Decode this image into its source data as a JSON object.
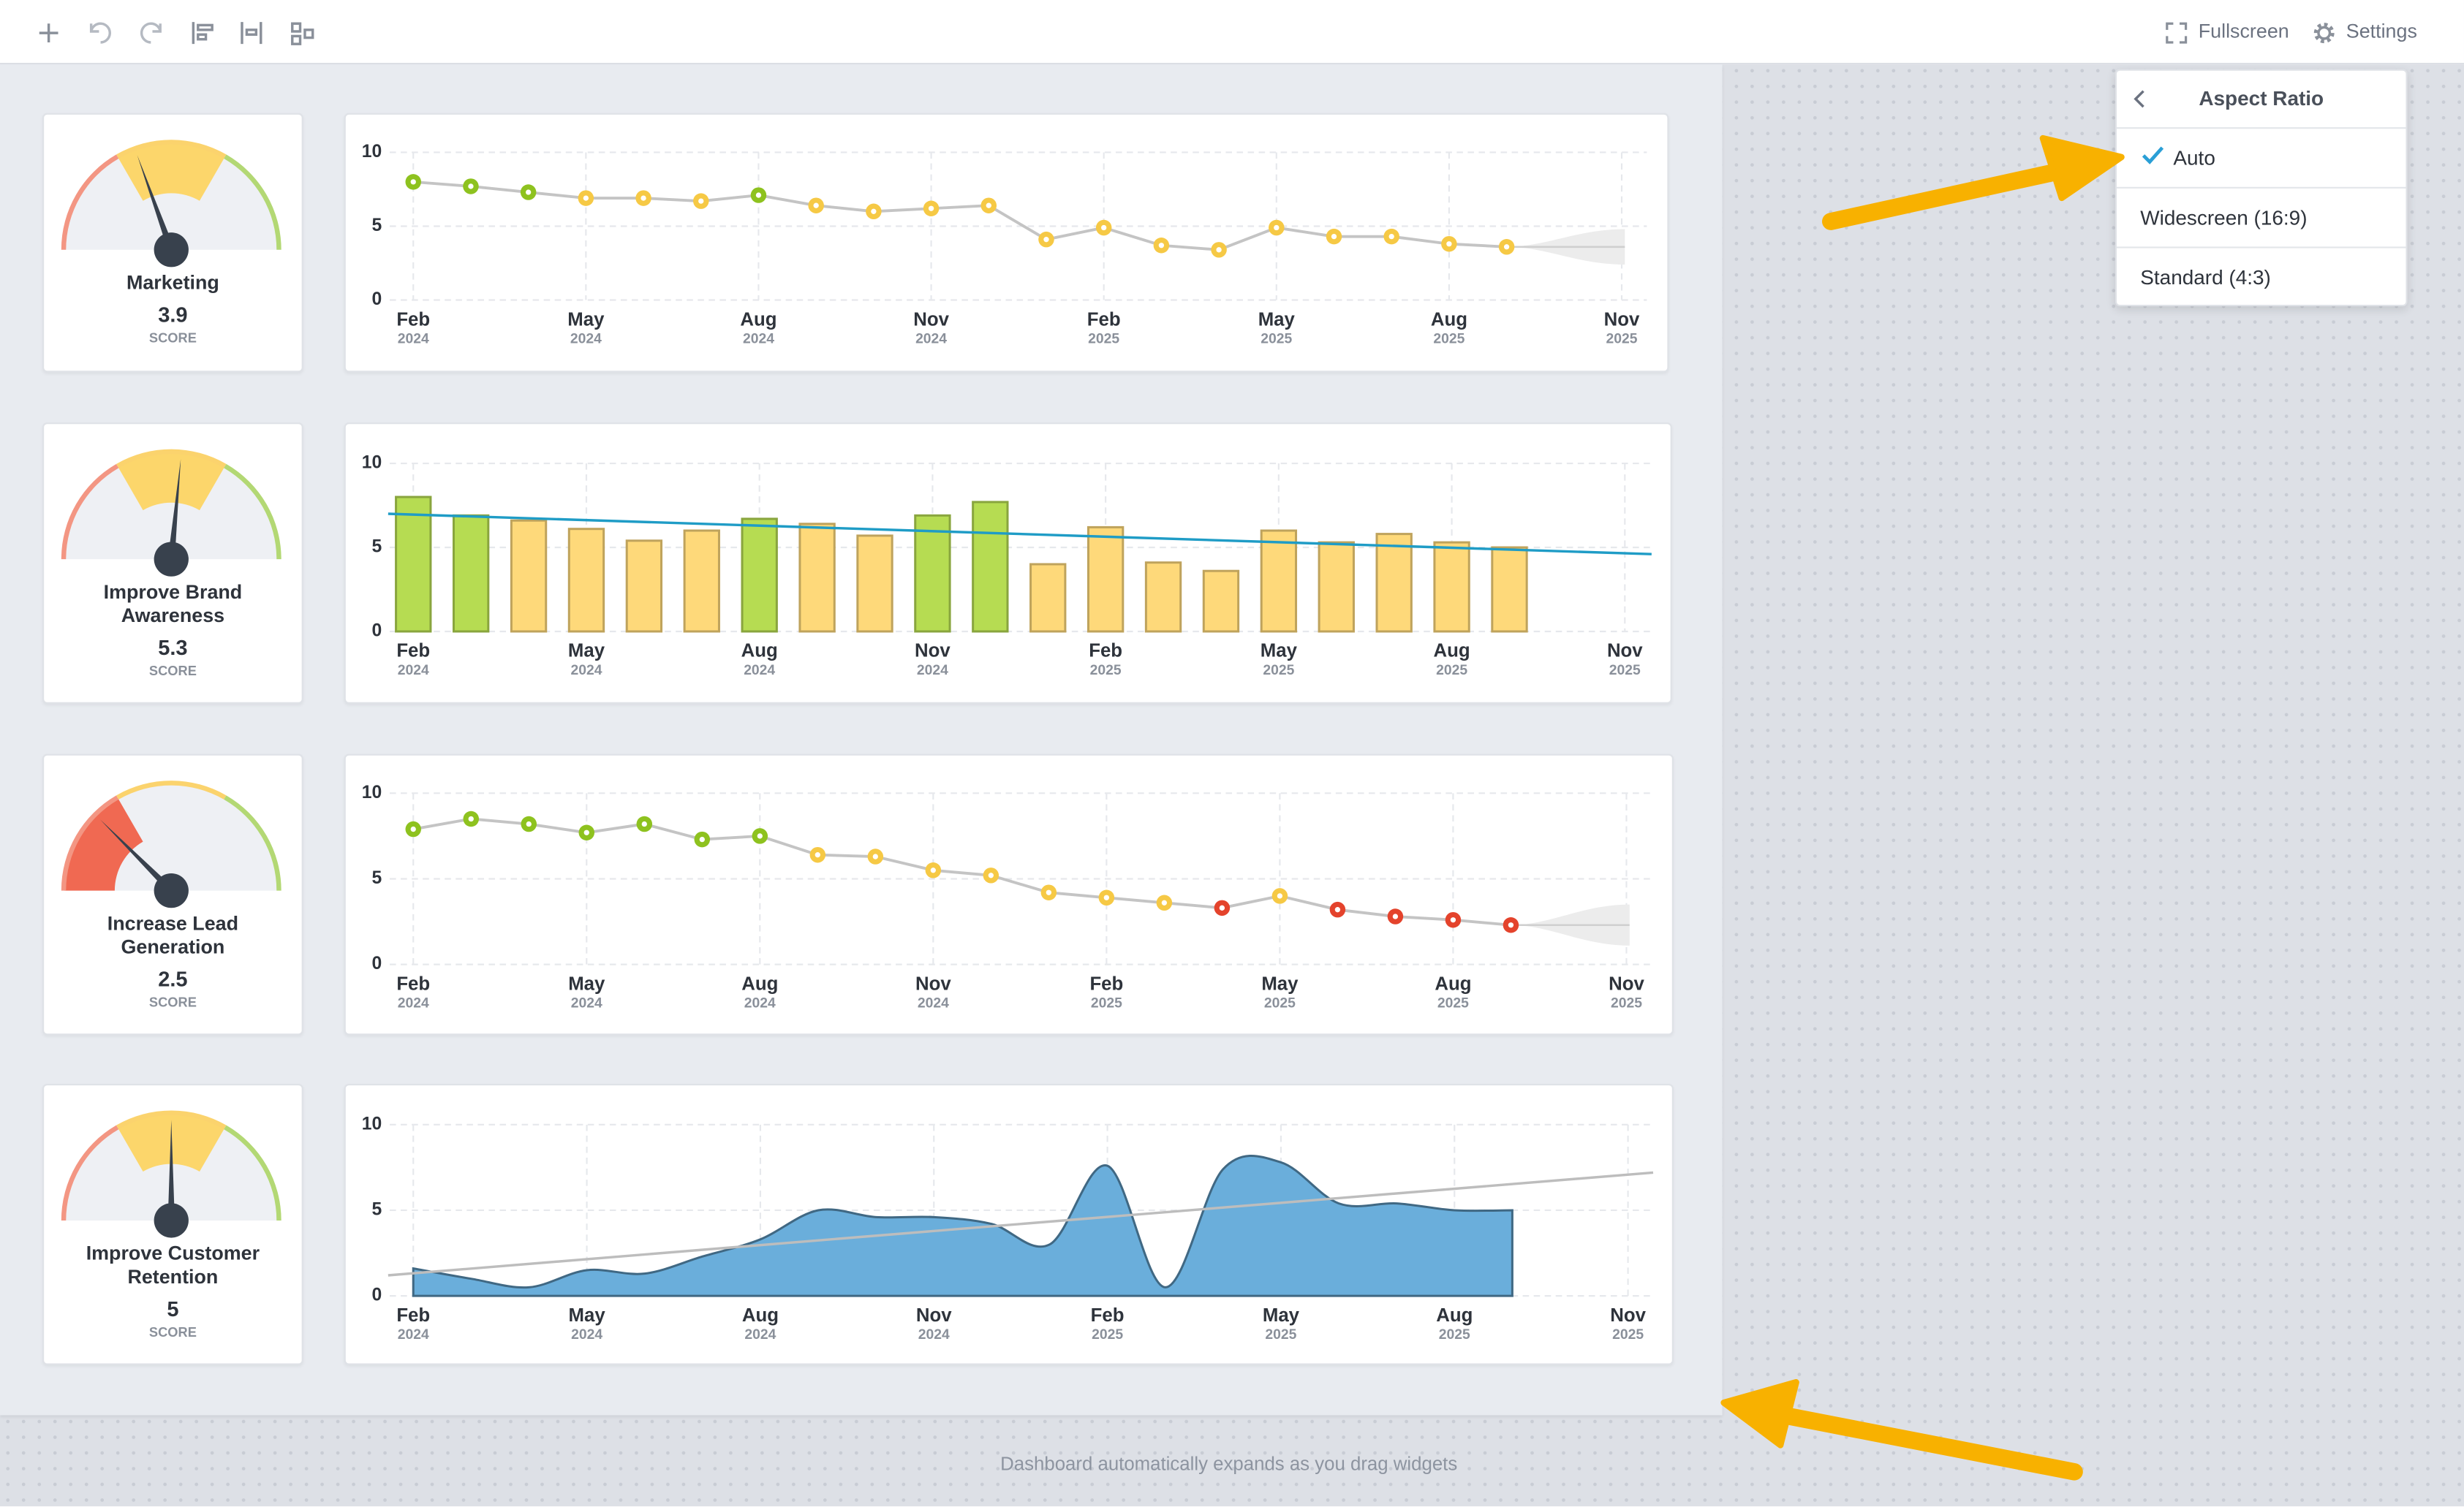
{
  "toolbar": {
    "fullscreen": "Fullscreen",
    "settings": "Settings"
  },
  "aspect_menu": {
    "title": "Aspect Ratio",
    "options": [
      {
        "label": "Auto",
        "selected": true
      },
      {
        "label": "Widescreen (16:9)",
        "selected": false
      },
      {
        "label": "Standard (4:3)",
        "selected": false
      }
    ]
  },
  "widgets": [
    {
      "gauge": {
        "label": "Marketing",
        "score": 3.9,
        "score_label": "SCORE",
        "range": [
          0,
          10
        ]
      },
      "chart_data": {
        "type": "line",
        "color": "#c4c4c4",
        "forecast": true,
        "categories": [
          {
            "month": "Feb",
            "year": "2024"
          },
          null,
          null,
          {
            "month": "May",
            "year": "2024"
          },
          null,
          null,
          {
            "month": "Aug",
            "year": "2024"
          },
          null,
          null,
          {
            "month": "Nov",
            "year": "2024"
          },
          null,
          null,
          {
            "month": "Feb",
            "year": "2025"
          },
          null,
          null,
          {
            "month": "May",
            "year": "2025"
          },
          null,
          null,
          {
            "month": "Aug",
            "year": "2025"
          },
          null,
          null,
          {
            "month": "Nov",
            "year": "2025"
          }
        ],
        "values": [
          8.0,
          7.7,
          7.3,
          6.9,
          6.9,
          6.7,
          7.1,
          6.4,
          6.0,
          6.2,
          6.4,
          4.1,
          4.9,
          3.7,
          3.4,
          4.9,
          4.3,
          4.3,
          3.8,
          3.6,
          null,
          null
        ],
        "colors": [
          "#8ec21f",
          "#8ec21f",
          "#8ec21f",
          "#f6c945",
          "#f6c945",
          "#f6c945",
          "#8ec21f",
          "#f6c945",
          "#f6c945",
          "#f6c945",
          "#f6c945",
          "#f6c945",
          "#f6c945",
          "#f6c945",
          "#f6c945",
          "#f6c945",
          "#f6c945",
          "#f6c945",
          "#f6c945",
          "#f6c945",
          null,
          null
        ],
        "ylim": [
          0,
          10
        ],
        "yticks": [
          0,
          5,
          10
        ],
        "grid": true
      }
    },
    {
      "gauge": {
        "label": "Improve Brand Awareness",
        "score": 5.3,
        "score_label": "SCORE",
        "range": [
          0,
          10
        ]
      },
      "chart_data": {
        "type": "bar",
        "trend": [
          7.0,
          4.6
        ],
        "trend_color": "#1f9cc6",
        "categories": [
          {
            "month": "Feb",
            "year": "2024"
          },
          null,
          null,
          {
            "month": "May",
            "year": "2024"
          },
          null,
          null,
          {
            "month": "Aug",
            "year": "2024"
          },
          null,
          null,
          {
            "month": "Nov",
            "year": "2024"
          },
          null,
          null,
          {
            "month": "Feb",
            "year": "2025"
          },
          null,
          null,
          {
            "month": "May",
            "year": "2025"
          },
          null,
          null,
          {
            "month": "Aug",
            "year": "2025"
          },
          null,
          null,
          {
            "month": "Nov",
            "year": "2025"
          }
        ],
        "values": [
          8.0,
          6.9,
          6.6,
          6.1,
          5.4,
          6.0,
          6.7,
          6.4,
          5.7,
          6.9,
          7.7,
          4.0,
          6.2,
          4.1,
          3.6,
          6.0,
          5.3,
          5.8,
          5.3,
          5.0,
          null,
          null
        ],
        "colors": [
          "#b6dc52",
          "#b6dc52",
          "#fed97a",
          "#fed97a",
          "#fed97a",
          "#fed97a",
          "#b6dc52",
          "#fed97a",
          "#fed97a",
          "#b6dc52",
          "#b6dc52",
          "#fed97a",
          "#fed97a",
          "#fed97a",
          "#fed97a",
          "#fed97a",
          "#fed97a",
          "#fed97a",
          "#fed97a",
          "#fed97a",
          null,
          null
        ],
        "ylim": [
          0,
          10
        ],
        "yticks": [
          0,
          5,
          10
        ],
        "grid": true
      }
    },
    {
      "gauge": {
        "label": "Increase Lead Generation",
        "score": 2.5,
        "score_label": "SCORE",
        "range": [
          0,
          10
        ]
      },
      "chart_data": {
        "type": "line",
        "color": "#c4c4c4",
        "forecast": true,
        "categories": [
          {
            "month": "Feb",
            "year": "2024"
          },
          null,
          null,
          {
            "month": "May",
            "year": "2024"
          },
          null,
          null,
          {
            "month": "Aug",
            "year": "2024"
          },
          null,
          null,
          {
            "month": "Nov",
            "year": "2024"
          },
          null,
          null,
          {
            "month": "Feb",
            "year": "2025"
          },
          null,
          null,
          {
            "month": "May",
            "year": "2025"
          },
          null,
          null,
          {
            "month": "Aug",
            "year": "2025"
          },
          null,
          null,
          {
            "month": "Nov",
            "year": "2025"
          }
        ],
        "values": [
          7.9,
          8.5,
          8.2,
          7.7,
          8.2,
          7.3,
          7.5,
          6.4,
          6.3,
          5.5,
          5.2,
          4.2,
          3.9,
          3.6,
          3.3,
          4.0,
          3.2,
          2.8,
          2.6,
          2.3,
          null,
          null
        ],
        "colors": [
          "#8ec21f",
          "#8ec21f",
          "#8ec21f",
          "#8ec21f",
          "#8ec21f",
          "#8ec21f",
          "#8ec21f",
          "#f6c945",
          "#f6c945",
          "#f6c945",
          "#f6c945",
          "#f6c945",
          "#f6c945",
          "#f6c945",
          "#e4432c",
          "#f6c945",
          "#e4432c",
          "#e4432c",
          "#e4432c",
          "#e4432c",
          null,
          null
        ],
        "ylim": [
          0,
          10
        ],
        "yticks": [
          0,
          5,
          10
        ],
        "grid": true
      }
    },
    {
      "gauge": {
        "label": "Improve Customer Retention",
        "score": 5,
        "score_label": "SCORE",
        "range": [
          0,
          10
        ]
      },
      "chart_data": {
        "type": "area",
        "color": "#6aaedb",
        "trend": [
          1.2,
          7.2
        ],
        "trend_color": "#bdbdbd",
        "categories": [
          {
            "month": "Feb",
            "year": "2024"
          },
          null,
          null,
          {
            "month": "May",
            "year": "2024"
          },
          null,
          null,
          {
            "month": "Aug",
            "year": "2024"
          },
          null,
          null,
          {
            "month": "Nov",
            "year": "2024"
          },
          null,
          null,
          {
            "month": "Feb",
            "year": "2025"
          },
          null,
          null,
          {
            "month": "May",
            "year": "2025"
          },
          null,
          null,
          {
            "month": "Aug",
            "year": "2025"
          },
          null,
          null,
          {
            "month": "Nov",
            "year": "2025"
          }
        ],
        "values": [
          1.6,
          1.0,
          0.5,
          1.5,
          1.3,
          2.3,
          3.3,
          5.0,
          4.6,
          4.6,
          4.2,
          3.0,
          7.6,
          0.5,
          7.4,
          7.8,
          5.4,
          5.4,
          5.0,
          5.0,
          null,
          null
        ],
        "ylim": [
          0,
          10
        ],
        "yticks": [
          0,
          5,
          10
        ],
        "grid": true
      }
    }
  ],
  "footer": "Dashboard automatically expands as you drag widgets"
}
